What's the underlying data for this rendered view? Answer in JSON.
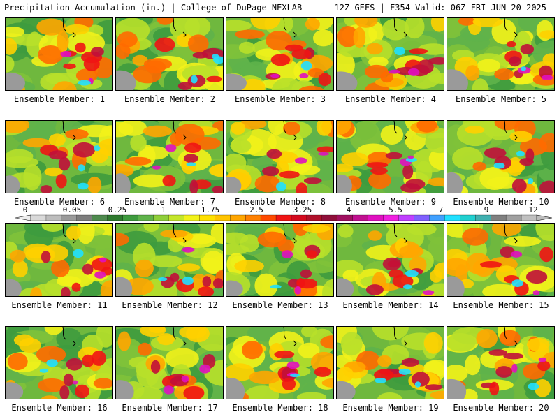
{
  "header": {
    "left": "Precipitation Accumulation (in.) | College of DuPage NEXLAB",
    "right": "12Z GEFS | F354 Valid: 06Z FRI JUN 20 2025"
  },
  "colorbar": {
    "tick_labels": [
      "0",
      "0.05",
      "0.25",
      "1",
      "1.75",
      "2.5",
      "3.25",
      "4",
      "5.5",
      "7",
      "9",
      "12"
    ],
    "colors": [
      "#d9d9d9",
      "#bdbdbd",
      "#9a9a9a",
      "#7d7d7d",
      "#4e8a4e",
      "#2f7a2f",
      "#3e9b3e",
      "#5fb34a",
      "#8fcf3a",
      "#c4e62a",
      "#f2f21a",
      "#ffe000",
      "#ffc400",
      "#ffa600",
      "#ff8000",
      "#ff4a00",
      "#f01414",
      "#d40a1e",
      "#b0102a",
      "#8f0f3a",
      "#a01060",
      "#c01090",
      "#e010c0",
      "#f020e0",
      "#c040ff",
      "#8060ff",
      "#40a0ff",
      "#20e0ff",
      "#20d0d0",
      "#40b0b0",
      "#808080",
      "#a0a0a0",
      "#c0c0c0"
    ]
  },
  "members": [
    {
      "label": "Ensemble Member: 1"
    },
    {
      "label": "Ensemble Member: 2"
    },
    {
      "label": "Ensemble Member: 3"
    },
    {
      "label": "Ensemble Member: 4"
    },
    {
      "label": "Ensemble Member: 5"
    },
    {
      "label": "Ensemble Member: 6"
    },
    {
      "label": "Ensemble Member: 7"
    },
    {
      "label": "Ensemble Member: 8"
    },
    {
      "label": "Ensemble Member: 9"
    },
    {
      "label": "Ensemble Member: 10"
    },
    {
      "label": "Ensemble Member: 11"
    },
    {
      "label": "Ensemble Member: 12"
    },
    {
      "label": "Ensemble Member: 13"
    },
    {
      "label": "Ensemble Member: 14"
    },
    {
      "label": "Ensemble Member: 15"
    },
    {
      "label": "Ensemble Member: 16"
    },
    {
      "label": "Ensemble Member: 17"
    },
    {
      "label": "Ensemble Member: 18"
    },
    {
      "label": "Ensemble Member: 19"
    },
    {
      "label": "Ensemble Member: 20"
    }
  ]
}
